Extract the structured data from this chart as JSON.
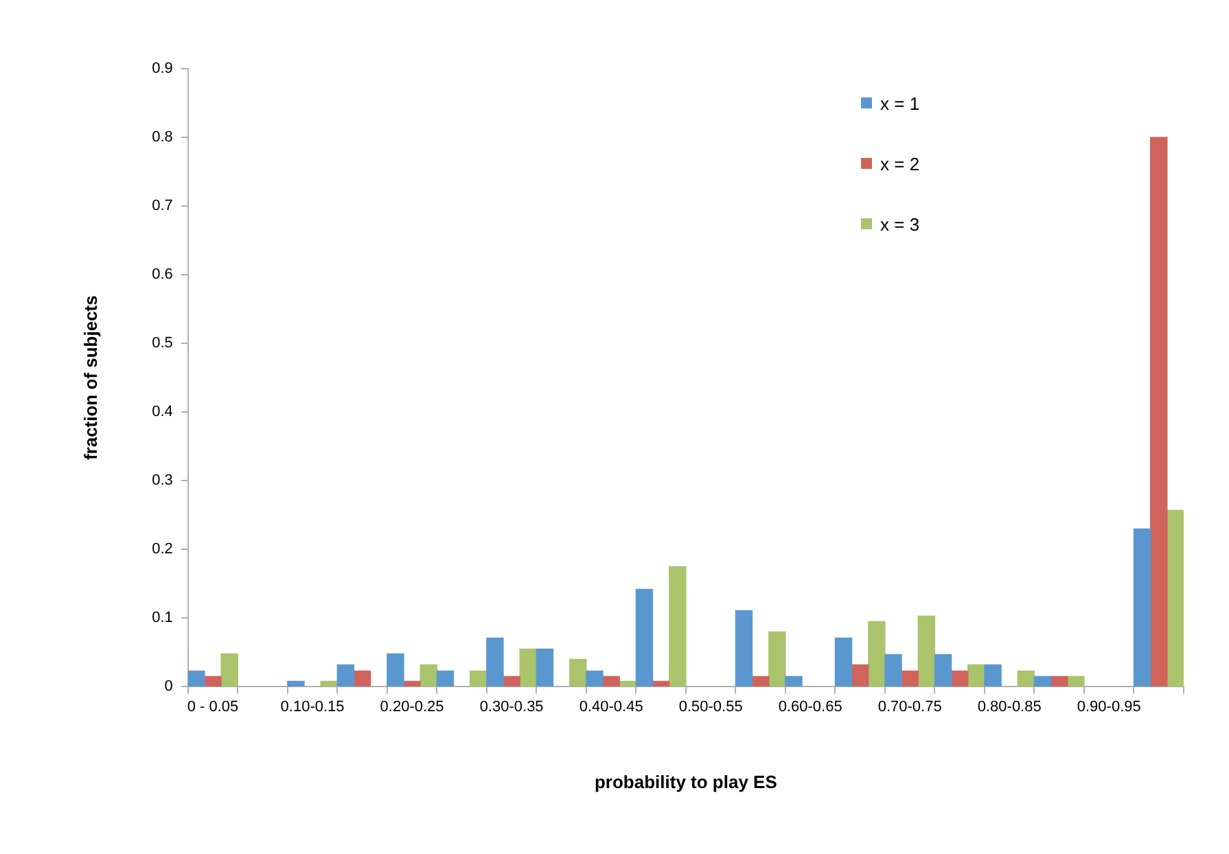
{
  "chart_data": {
    "type": "bar",
    "xlabel": "probability to play ES",
    "ylabel": "fraction of subjects",
    "categories": [
      "0 - 0.05",
      null,
      "0.10-0.15",
      null,
      "0.20-0.25",
      null,
      "0.30-0.35",
      null,
      "0.40-0.45",
      null,
      "0.50-0.55",
      null,
      "0.60-0.65",
      null,
      "0.70-0.75",
      null,
      "0.80-0.85",
      null,
      "0.90-0.95",
      null
    ],
    "series": [
      {
        "name": "x = 1",
        "color": "#5b97cf",
        "values": [
          0.023,
          null,
          0.008,
          0.032,
          0.048,
          0.023,
          0.071,
          0.055,
          0.023,
          0.142,
          null,
          0.111,
          0.015,
          0.071,
          0.047,
          0.047,
          0.032,
          0.015,
          null,
          0.23
        ]
      },
      {
        "name": "x = 2",
        "color": "#d0635c",
        "values": [
          0.015,
          null,
          null,
          0.023,
          0.008,
          null,
          0.015,
          null,
          0.015,
          0.008,
          null,
          0.015,
          null,
          0.032,
          0.023,
          0.023,
          null,
          0.015,
          null,
          0.8
        ]
      },
      {
        "name": "x = 3",
        "color": "#a9c46a",
        "values": [
          0.048,
          null,
          0.008,
          null,
          0.032,
          0.023,
          0.055,
          0.04,
          0.008,
          0.175,
          null,
          0.08,
          null,
          0.095,
          0.103,
          0.032,
          0.023,
          0.015,
          null,
          0.257
        ]
      }
    ],
    "ylim": [
      0,
      0.9
    ],
    "yticks": [
      0,
      0.1,
      0.2,
      0.3,
      0.4,
      0.5,
      0.6,
      0.7,
      0.8,
      0.9
    ],
    "grid": false,
    "legend": "top right"
  }
}
